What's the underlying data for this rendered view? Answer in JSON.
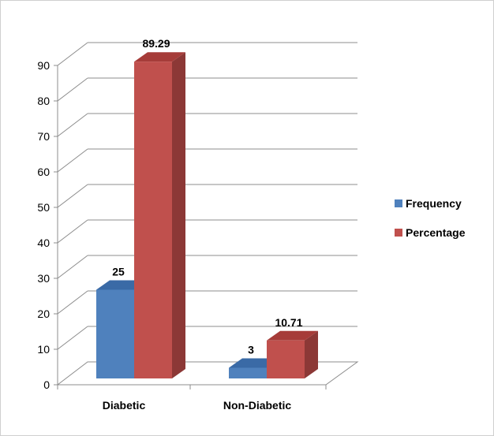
{
  "chart_data": {
    "type": "bar",
    "title": "",
    "xlabel": "",
    "ylabel": "",
    "categories": [
      "Diabetic",
      "Non-Diabetic"
    ],
    "series": [
      {
        "name": "Frequency",
        "values": [
          25,
          3
        ],
        "value_labels": [
          "25",
          "3"
        ],
        "color": "#4f81bd",
        "side_color": "#385d8a",
        "top_color": "#3a6aa6"
      },
      {
        "name": "Percentage",
        "values": [
          89.29,
          10.71
        ],
        "value_labels": [
          "89.29",
          "10.71"
        ],
        "color": "#c0504d",
        "side_color": "#8c3836",
        "top_color": "#a63c39"
      }
    ],
    "ylim": [
      0,
      90
    ],
    "yticks": [
      0,
      10,
      20,
      30,
      40,
      50,
      60,
      70,
      80,
      90
    ],
    "ytick_labels": [
      "0",
      "10",
      "20",
      "30",
      "40",
      "50",
      "60",
      "70",
      "80",
      "90"
    ],
    "grid": true,
    "legend_position": "right",
    "style": "3d-clustered-column"
  }
}
